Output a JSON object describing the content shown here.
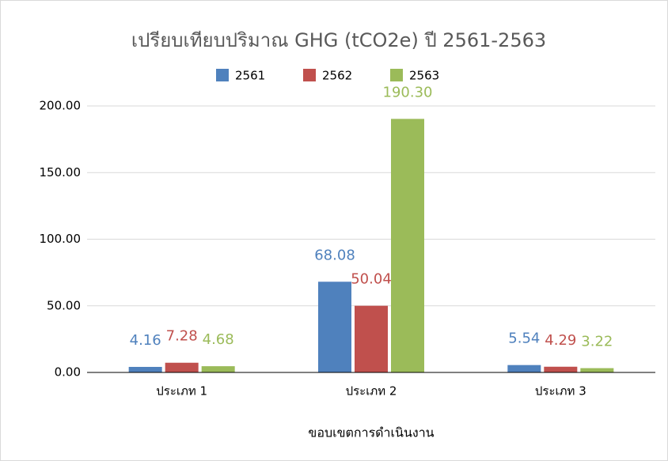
{
  "chart_data": {
    "type": "bar",
    "title": "เปรียบเทียบปริมาณ GHG (tCO2e) ปี 2561-2563",
    "x_label": "ขอบเขตการดำเนินงาน",
    "categories": [
      "ประเภท 1",
      "ประเภท 2",
      "ประเภท 3"
    ],
    "series": [
      {
        "name": "2561",
        "color": "#4f81bd",
        "values": [
          4.16,
          68.08,
          5.54
        ],
        "value_labels": [
          "4.16",
          "68.08",
          "5.54"
        ]
      },
      {
        "name": "2562",
        "color": "#c0504d",
        "values": [
          7.28,
          50.04,
          4.29
        ],
        "value_labels": [
          "7.28",
          "50.04",
          "4.29"
        ]
      },
      {
        "name": "2563",
        "color": "#9bbb59",
        "values": [
          4.68,
          190.3,
          3.22
        ],
        "value_labels": [
          "4.68",
          "190.30",
          "3.22"
        ]
      }
    ],
    "ylim": [
      0,
      200
    ],
    "yticks": [
      {
        "value": 0,
        "label": "0.00"
      },
      {
        "value": 50,
        "label": "50.00"
      },
      {
        "value": 100,
        "label": "100.00"
      },
      {
        "value": 150,
        "label": "150.00"
      },
      {
        "value": 200,
        "label": "200.00"
      }
    ],
    "grid": true,
    "legend": "top"
  }
}
